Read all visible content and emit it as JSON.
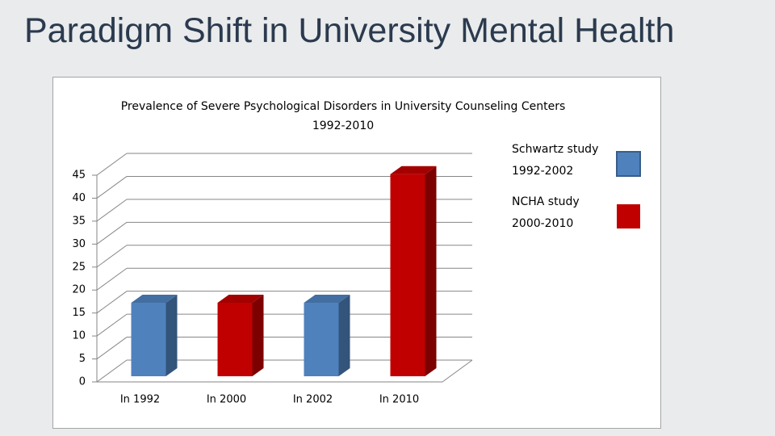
{
  "slide": {
    "title": "Paradigm Shift in University Mental Health"
  },
  "chart_data": {
    "type": "bar3d",
    "title": "Prevalence of Severe Psychological Disorders in University Counseling Centers\n1992-2010",
    "categories": [
      "In 1992",
      "In 2000",
      "In 2002",
      "In 2010"
    ],
    "series": [
      {
        "name": "Schwartz study\n1992-2002",
        "color": "#4f81bd",
        "values": [
          16,
          null,
          16,
          null
        ]
      },
      {
        "name": "NCHA study\n2000-2010",
        "color": "#c00000",
        "values": [
          null,
          16,
          null,
          44
        ]
      }
    ],
    "ylim": [
      0,
      45
    ],
    "yticks": [
      0,
      5,
      10,
      15,
      20,
      25,
      30,
      35,
      40,
      45
    ],
    "grid": true,
    "legend": "right"
  }
}
